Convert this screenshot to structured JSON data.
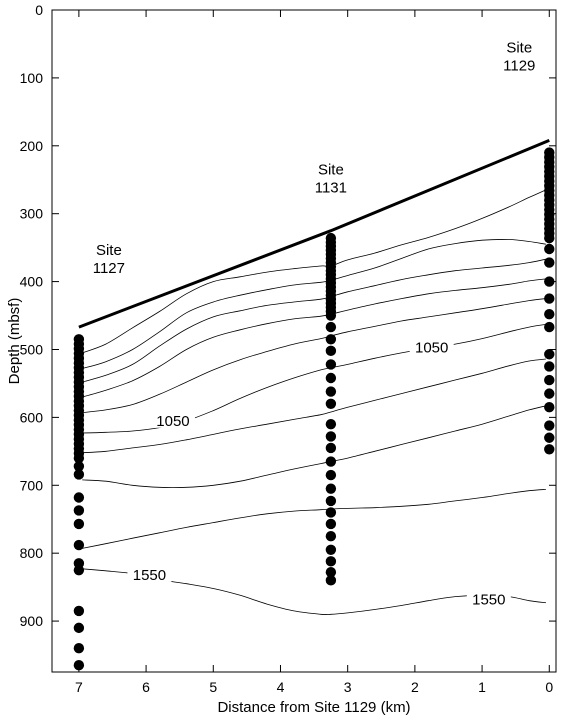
{
  "chart_data": {
    "type": "scatter",
    "xlabel": "Distance from Site 1129 (km)",
    "ylabel": "Depth (mbsf)",
    "xlim": [
      7.4,
      -0.1
    ],
    "ylim": [
      0,
      975
    ],
    "x_ticks": [
      7,
      6,
      5,
      4,
      3,
      2,
      1,
      0
    ],
    "y_ticks": [
      0,
      100,
      200,
      300,
      400,
      500,
      600,
      700,
      800,
      900
    ],
    "seafloor_line": [
      [
        7,
        467
      ],
      [
        3.25,
        325
      ],
      [
        0,
        192
      ]
    ],
    "sites": [
      {
        "line1": "Site",
        "line2": "1127",
        "x": 7,
        "top_depth": 467
      },
      {
        "line1": "Site",
        "line2": "1131",
        "x": 3.25,
        "top_depth": 325
      },
      {
        "line1": "Site",
        "line2": "1129",
        "x": 0,
        "top_depth": 192
      }
    ],
    "contour_labels": [
      {
        "text": "1050",
        "x": 5.6,
        "y": 605
      },
      {
        "text": "1050",
        "x": 1.75,
        "y": 497
      },
      {
        "text": "1550",
        "x": 5.95,
        "y": 832
      },
      {
        "text": "1550",
        "x": 0.9,
        "y": 868
      }
    ],
    "samples": [
      {
        "x": 7,
        "depths": [
          485,
          492,
          499,
          506,
          513,
          520,
          527,
          534,
          541,
          548,
          555,
          562,
          569,
          576,
          583,
          590,
          597,
          604,
          611,
          618,
          625,
          632,
          639,
          646,
          653,
          660,
          672,
          684,
          718,
          737,
          757,
          788,
          815,
          825,
          885,
          910,
          940,
          965
        ]
      },
      {
        "x": 3.25,
        "depths": [
          336,
          342,
          348,
          354,
          360,
          366,
          372,
          378,
          384,
          390,
          396,
          402,
          408,
          414,
          420,
          426,
          432,
          438,
          444,
          450,
          467,
          485,
          502,
          522,
          542,
          562,
          580,
          610,
          628,
          645,
          665,
          685,
          705,
          723,
          740,
          757,
          775,
          795,
          812,
          828,
          840
        ]
      },
      {
        "x": 0,
        "depths": [
          210,
          217,
          224,
          231,
          238,
          245,
          252,
          259,
          266,
          273,
          280,
          287,
          294,
          301,
          308,
          315,
          322,
          329,
          336,
          352,
          372,
          400,
          425,
          448,
          467,
          507,
          525,
          545,
          565,
          585,
          612,
          630,
          647
        ]
      }
    ],
    "contours": [
      [
        [
          6.95,
          505
        ],
        [
          6.6,
          492
        ],
        [
          6.2,
          468
        ],
        [
          5.8,
          444
        ],
        [
          5.4,
          418
        ],
        [
          5,
          400
        ],
        [
          4.6,
          393
        ],
        [
          4.2,
          386
        ],
        [
          3.8,
          381
        ],
        [
          3.4,
          377
        ],
        [
          3.25,
          377
        ],
        [
          3,
          368
        ],
        [
          2.6,
          358
        ],
        [
          2.2,
          346
        ],
        [
          1.8,
          335
        ],
        [
          1.4,
          322
        ],
        [
          1,
          307
        ],
        [
          0.6,
          290
        ],
        [
          0.3,
          276
        ],
        [
          0.05,
          265
        ]
      ],
      [
        [
          6.95,
          528
        ],
        [
          6.6,
          518
        ],
        [
          6.2,
          500
        ],
        [
          5.8,
          474
        ],
        [
          5.4,
          446
        ],
        [
          5,
          430
        ],
        [
          4.6,
          420
        ],
        [
          4.2,
          412
        ],
        [
          3.8,
          405
        ],
        [
          3.4,
          401
        ],
        [
          3.25,
          398
        ],
        [
          3,
          391
        ],
        [
          2.6,
          380
        ],
        [
          2.2,
          366
        ],
        [
          1.8,
          352
        ],
        [
          1.4,
          344
        ],
        [
          1,
          339
        ],
        [
          0.6,
          338
        ],
        [
          0.3,
          341
        ],
        [
          0.05,
          345
        ]
      ],
      [
        [
          6.95,
          548
        ],
        [
          6.6,
          538
        ],
        [
          6.2,
          522
        ],
        [
          5.8,
          495
        ],
        [
          5.4,
          470
        ],
        [
          5,
          452
        ],
        [
          4.6,
          443
        ],
        [
          4.2,
          435
        ],
        [
          3.8,
          430
        ],
        [
          3.4,
          426
        ],
        [
          3.25,
          422
        ],
        [
          3,
          415
        ],
        [
          2.6,
          406
        ],
        [
          2.2,
          397
        ],
        [
          1.8,
          390
        ],
        [
          1.4,
          384
        ],
        [
          1,
          380
        ],
        [
          0.6,
          376
        ],
        [
          0.3,
          372
        ],
        [
          0.05,
          367
        ]
      ],
      [
        [
          6.95,
          570
        ],
        [
          6.6,
          560
        ],
        [
          6.2,
          546
        ],
        [
          5.8,
          525
        ],
        [
          5.4,
          500
        ],
        [
          5,
          482
        ],
        [
          4.6,
          471
        ],
        [
          4.2,
          462
        ],
        [
          3.8,
          455
        ],
        [
          3.4,
          451
        ],
        [
          3.25,
          448
        ],
        [
          3,
          442
        ],
        [
          2.6,
          433
        ],
        [
          2.2,
          425
        ],
        [
          1.8,
          418
        ],
        [
          1.4,
          413
        ],
        [
          1,
          409
        ],
        [
          0.6,
          404
        ],
        [
          0.3,
          399
        ],
        [
          0.05,
          396
        ]
      ],
      [
        [
          6.95,
          593
        ],
        [
          6.6,
          589
        ],
        [
          6.2,
          581
        ],
        [
          5.8,
          566
        ],
        [
          5.4,
          548
        ],
        [
          5,
          530
        ],
        [
          4.6,
          515
        ],
        [
          4.2,
          503
        ],
        [
          3.8,
          492
        ],
        [
          3.4,
          484
        ],
        [
          3.25,
          480
        ],
        [
          3,
          474
        ],
        [
          2.6,
          466
        ],
        [
          2.2,
          458
        ],
        [
          1.8,
          452
        ],
        [
          1.4,
          446
        ],
        [
          1,
          440
        ],
        [
          0.6,
          433
        ],
        [
          0.3,
          428
        ],
        [
          0.05,
          425
        ]
      ],
      [
        [
          6.95,
          623
        ],
        [
          6.6,
          622
        ],
        [
          6.2,
          620
        ],
        [
          5.8,
          615
        ],
        [
          5.4,
          605
        ],
        [
          5,
          590
        ],
        [
          4.6,
          572
        ],
        [
          4.2,
          556
        ],
        [
          3.8,
          542
        ],
        [
          3.4,
          530
        ],
        [
          3.25,
          527
        ],
        [
          3,
          522
        ],
        [
          2.6,
          513
        ],
        [
          2.2,
          505
        ],
        [
          1.8,
          498
        ],
        [
          1.4,
          492
        ],
        [
          1,
          484
        ],
        [
          0.6,
          474
        ],
        [
          0.3,
          467
        ],
        [
          0.05,
          463
        ]
      ],
      [
        [
          6.95,
          652
        ],
        [
          6.6,
          650
        ],
        [
          6.2,
          645
        ],
        [
          5.8,
          640
        ],
        [
          5.4,
          633
        ],
        [
          5,
          625
        ],
        [
          4.6,
          617
        ],
        [
          4.2,
          610
        ],
        [
          3.8,
          603
        ],
        [
          3.4,
          596
        ],
        [
          3.25,
          592
        ],
        [
          3,
          585
        ],
        [
          2.6,
          575
        ],
        [
          2.2,
          565
        ],
        [
          1.8,
          555
        ],
        [
          1.4,
          545
        ],
        [
          1,
          535
        ],
        [
          0.6,
          524
        ],
        [
          0.3,
          517
        ],
        [
          0.05,
          514
        ]
      ],
      [
        [
          6.95,
          692
        ],
        [
          6.6,
          694
        ],
        [
          6.2,
          700
        ],
        [
          5.8,
          703
        ],
        [
          5.4,
          703
        ],
        [
          5,
          700
        ],
        [
          4.6,
          694
        ],
        [
          4.2,
          685
        ],
        [
          3.8,
          676
        ],
        [
          3.4,
          668
        ],
        [
          3.25,
          665
        ],
        [
          3,
          660
        ],
        [
          2.6,
          650
        ],
        [
          2.2,
          640
        ],
        [
          1.8,
          630
        ],
        [
          1.4,
          620
        ],
        [
          1,
          610
        ],
        [
          0.6,
          598
        ],
        [
          0.3,
          589
        ],
        [
          0.05,
          583
        ]
      ],
      [
        [
          6.95,
          793
        ],
        [
          6.6,
          786
        ],
        [
          6.2,
          778
        ],
        [
          5.8,
          770
        ],
        [
          5.4,
          762
        ],
        [
          5,
          755
        ],
        [
          4.6,
          748
        ],
        [
          4.2,
          742
        ],
        [
          3.8,
          738
        ],
        [
          3.4,
          736
        ],
        [
          3.25,
          735
        ],
        [
          3,
          734
        ],
        [
          2.6,
          733
        ],
        [
          2.2,
          731
        ],
        [
          1.8,
          728
        ],
        [
          1.4,
          723
        ],
        [
          1,
          718
        ],
        [
          0.6,
          712
        ],
        [
          0.3,
          708
        ],
        [
          0.05,
          706
        ]
      ],
      [
        [
          6.95,
          823
        ],
        [
          6.6,
          826
        ],
        [
          6.2,
          830
        ],
        [
          6,
          834
        ],
        [
          5.8,
          839
        ],
        [
          5.4,
          845
        ],
        [
          5,
          852
        ],
        [
          4.6,
          862
        ],
        [
          4.2,
          875
        ],
        [
          3.8,
          885
        ],
        [
          3.4,
          890
        ],
        [
          3.25,
          890
        ],
        [
          3,
          888
        ],
        [
          2.6,
          883
        ],
        [
          2.2,
          877
        ],
        [
          1.8,
          870
        ],
        [
          1.4,
          864
        ],
        [
          1,
          862
        ],
        [
          0.6,
          864
        ],
        [
          0.3,
          870
        ],
        [
          0.05,
          873
        ]
      ]
    ]
  }
}
